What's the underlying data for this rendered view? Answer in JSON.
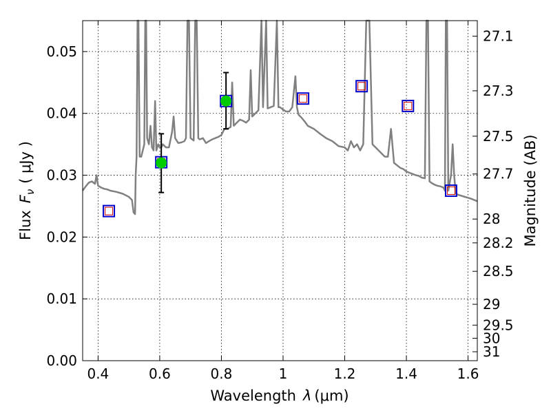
{
  "chart_data": {
    "type": "scatter",
    "xlabel": "Wavelength",
    "xlabel_symbol": "λ",
    "xlabel_unit": "(μm)",
    "ylabel": "Flux",
    "ylabel_symbol": "F",
    "ylabel_subscript": "ν",
    "ylabel_unit": "( μJy )",
    "y2label": "Magnitude (AB)",
    "xlim": [
      0.35,
      1.63
    ],
    "ylim": [
      0.0,
      0.055
    ],
    "grid": true,
    "x_ticks": [
      0.4,
      0.6,
      0.8,
      1.0,
      1.2,
      1.4,
      1.6
    ],
    "x_tick_labels": [
      "0.4",
      "0.6",
      "0.8",
      "1",
      "1.2",
      "1.4",
      "1.6"
    ],
    "y_ticks": [
      0.0,
      0.01,
      0.02,
      0.03,
      0.04,
      0.05
    ],
    "y_tick_labels": [
      "0.00",
      "0.01",
      "0.02",
      "0.03",
      "0.04",
      "0.05"
    ],
    "mag_ticks": [
      27.1,
      27.3,
      27.5,
      27.7,
      28,
      28.2,
      28.5,
      29,
      29.5,
      30,
      31
    ],
    "mag_tick_labels": [
      "27.1",
      "27.3",
      "27.5",
      "27.7",
      "28",
      "28.2",
      "28.5",
      "29",
      "29.5",
      "30",
      "31"
    ],
    "series": [
      {
        "kind": "sed_model",
        "color": "#808080",
        "points": [
          [
            0.35,
            0.0275
          ],
          [
            0.36,
            0.0282
          ],
          [
            0.37,
            0.0288
          ],
          [
            0.38,
            0.029
          ],
          [
            0.39,
            0.0286
          ],
          [
            0.395,
            0.03
          ],
          [
            0.4,
            0.0283
          ],
          [
            0.41,
            0.028
          ],
          [
            0.42,
            0.0278
          ],
          [
            0.43,
            0.0277
          ],
          [
            0.44,
            0.0275
          ],
          [
            0.46,
            0.0273
          ],
          [
            0.48,
            0.027
          ],
          [
            0.5,
            0.0265
          ],
          [
            0.51,
            0.026
          ],
          [
            0.515,
            0.024
          ],
          [
            0.52,
            0.0237
          ],
          [
            0.522,
            0.03
          ],
          [
            0.525,
            0.033
          ],
          [
            0.528,
            0.055
          ],
          [
            0.531,
            0.055
          ],
          [
            0.535,
            0.033
          ],
          [
            0.54,
            0.033
          ],
          [
            0.545,
            0.034
          ],
          [
            0.55,
            0.035
          ],
          [
            0.553,
            0.055
          ],
          [
            0.556,
            0.055
          ],
          [
            0.559,
            0.036
          ],
          [
            0.565,
            0.035
          ],
          [
            0.57,
            0.038
          ],
          [
            0.575,
            0.0345
          ],
          [
            0.58,
            0.034
          ],
          [
            0.585,
            0.042
          ],
          [
            0.589,
            0.034
          ],
          [
            0.595,
            0.035
          ],
          [
            0.6,
            0.0345
          ],
          [
            0.605,
            0.0345
          ],
          [
            0.61,
            0.035
          ],
          [
            0.62,
            0.0345
          ],
          [
            0.63,
            0.0345
          ],
          [
            0.64,
            0.037
          ],
          [
            0.645,
            0.0395
          ],
          [
            0.65,
            0.036
          ],
          [
            0.66,
            0.0352
          ],
          [
            0.67,
            0.0353
          ],
          [
            0.68,
            0.0355
          ],
          [
            0.685,
            0.036
          ],
          [
            0.69,
            0.055
          ],
          [
            0.695,
            0.055
          ],
          [
            0.7,
            0.036
          ],
          [
            0.71,
            0.0356
          ],
          [
            0.715,
            0.055
          ],
          [
            0.72,
            0.055
          ],
          [
            0.725,
            0.036
          ],
          [
            0.73,
            0.0358
          ],
          [
            0.74,
            0.036
          ],
          [
            0.75,
            0.0352
          ],
          [
            0.76,
            0.0355
          ],
          [
            0.77,
            0.0358
          ],
          [
            0.78,
            0.036
          ],
          [
            0.79,
            0.0362
          ],
          [
            0.8,
            0.0365
          ],
          [
            0.81,
            0.0375
          ],
          [
            0.82,
            0.0375
          ],
          [
            0.83,
            0.0378
          ],
          [
            0.835,
            0.045
          ],
          [
            0.84,
            0.038
          ],
          [
            0.85,
            0.0385
          ],
          [
            0.86,
            0.039
          ],
          [
            0.87,
            0.0388
          ],
          [
            0.88,
            0.0385
          ],
          [
            0.89,
            0.039
          ],
          [
            0.895,
            0.047
          ],
          [
            0.9,
            0.0395
          ],
          [
            0.91,
            0.04
          ],
          [
            0.92,
            0.0405
          ],
          [
            0.93,
            0.055
          ],
          [
            0.935,
            0.041
          ],
          [
            0.945,
            0.055
          ],
          [
            0.95,
            0.0408
          ],
          [
            0.96,
            0.041
          ],
          [
            0.97,
            0.0412
          ],
          [
            0.98,
            0.055
          ],
          [
            0.985,
            0.041
          ],
          [
            0.99,
            0.041
          ],
          [
            1.0,
            0.0406
          ],
          [
            1.01,
            0.0403
          ],
          [
            1.02,
            0.0403
          ],
          [
            1.03,
            0.041
          ],
          [
            1.04,
            0.046
          ],
          [
            1.045,
            0.041
          ],
          [
            1.05,
            0.0398
          ],
          [
            1.06,
            0.0393
          ],
          [
            1.07,
            0.0387
          ],
          [
            1.08,
            0.038
          ],
          [
            1.1,
            0.0375
          ],
          [
            1.12,
            0.0367
          ],
          [
            1.14,
            0.036
          ],
          [
            1.16,
            0.0355
          ],
          [
            1.18,
            0.0347
          ],
          [
            1.2,
            0.0345
          ],
          [
            1.21,
            0.034
          ],
          [
            1.22,
            0.0355
          ],
          [
            1.23,
            0.0345
          ],
          [
            1.24,
            0.035
          ],
          [
            1.25,
            0.034
          ],
          [
            1.26,
            0.035
          ],
          [
            1.27,
            0.055
          ],
          [
            1.28,
            0.055
          ],
          [
            1.29,
            0.035
          ],
          [
            1.3,
            0.0345
          ],
          [
            1.31,
            0.034
          ],
          [
            1.32,
            0.0335
          ],
          [
            1.33,
            0.033
          ],
          [
            1.34,
            0.033
          ],
          [
            1.35,
            0.0375
          ],
          [
            1.36,
            0.032
          ],
          [
            1.37,
            0.0316
          ],
          [
            1.38,
            0.0312
          ],
          [
            1.39,
            0.031
          ],
          [
            1.4,
            0.0306
          ],
          [
            1.41,
            0.0304
          ],
          [
            1.42,
            0.0302
          ],
          [
            1.43,
            0.03
          ],
          [
            1.44,
            0.0299
          ],
          [
            1.45,
            0.0296
          ],
          [
            1.46,
            0.0295
          ],
          [
            1.465,
            0.055
          ],
          [
            1.47,
            0.055
          ],
          [
            1.475,
            0.029
          ],
          [
            1.48,
            0.0288
          ],
          [
            1.49,
            0.0285
          ],
          [
            1.5,
            0.0283
          ],
          [
            1.51,
            0.0282
          ],
          [
            1.52,
            0.028
          ],
          [
            1.525,
            0.0275
          ],
          [
            1.528,
            0.055
          ],
          [
            1.532,
            0.055
          ],
          [
            1.536,
            0.0275
          ],
          [
            1.545,
            0.03
          ],
          [
            1.55,
            0.035
          ],
          [
            1.555,
            0.03
          ],
          [
            1.56,
            0.027
          ],
          [
            1.57,
            0.0268
          ],
          [
            1.59,
            0.0265
          ],
          [
            1.61,
            0.0262
          ],
          [
            1.63,
            0.0258
          ]
        ]
      },
      {
        "kind": "model_fluxes",
        "marker": "square",
        "stroke": "#0000cc",
        "inner_stroke": "#cc0000",
        "points": [
          [
            0.435,
            0.0242
          ],
          [
            0.605,
            0.0321
          ],
          [
            0.815,
            0.042
          ],
          [
            1.065,
            0.0424
          ],
          [
            1.255,
            0.0444
          ],
          [
            1.405,
            0.0412
          ],
          [
            1.545,
            0.0275
          ]
        ]
      },
      {
        "kind": "observed",
        "marker": "circle",
        "fill": "#00cc00",
        "points": [
          {
            "x": 0.605,
            "y": 0.032,
            "err_low": 0.0272,
            "err_high": 0.0367
          },
          {
            "x": 0.815,
            "y": 0.042,
            "err_low": 0.0375,
            "err_high": 0.0466
          }
        ]
      }
    ]
  }
}
